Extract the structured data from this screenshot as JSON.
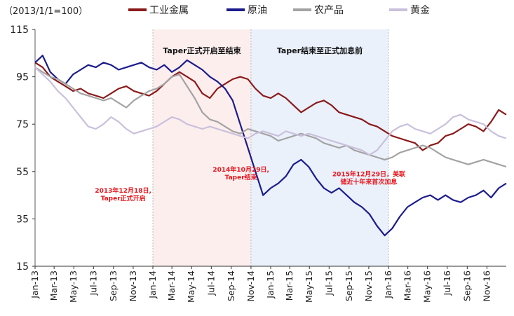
{
  "chart_data": {
    "type": "line",
    "unit_note": "（2013/1/1=100）",
    "y_ticks": [
      15,
      35,
      55,
      75,
      95,
      115
    ],
    "ylim": [
      15,
      115
    ],
    "x_tick_labels": [
      "Jan-13",
      "Mar-13",
      "May-13",
      "Jul-13",
      "Sep-13",
      "Nov-13",
      "Jan-14",
      "Mar-14",
      "May-14",
      "Jul-14",
      "Sep-14",
      "Nov-14",
      "Jan-15",
      "Mar-15",
      "May-15",
      "Jul-15",
      "Sep-15",
      "Nov-15",
      "Jan-16",
      "Mar-16",
      "May-16",
      "Jul-16",
      "Sep-16",
      "Nov-16"
    ],
    "shaded_periods": [
      {
        "label": "Taper正式开启至结束",
        "from": "2014-01-01",
        "to": "2014-11-01",
        "color": "#fdeeee"
      },
      {
        "label": "Taper结束至正式加息前",
        "from": "2014-11-01",
        "to": "2016-01-01",
        "color": "#eaf1fb"
      }
    ],
    "annotations": [
      {
        "lines": [
          "2013年12月18日,",
          "Taper正式开启"
        ],
        "at": "2013-10-01",
        "y": 46
      },
      {
        "lines": [
          "2014年10月29日,",
          "Taper结束"
        ],
        "at": "2014-10-01",
        "y": 55
      },
      {
        "lines": [
          "2015年12月29日，美联",
          "储近十年来首次加息"
        ],
        "at": "2015-11-01",
        "y": 53
      }
    ],
    "series": [
      {
        "name": "工业金属",
        "color": "#8b1a1a",
        "values": [
          101,
          99,
          95,
          93,
          91,
          89,
          90,
          88,
          87,
          86,
          88,
          90,
          91,
          89,
          88,
          87,
          89,
          92,
          95,
          97,
          95,
          93,
          88,
          86,
          90,
          92,
          94,
          95,
          94,
          90,
          87,
          86,
          88,
          86,
          83,
          80,
          82,
          84,
          85,
          83,
          80,
          79,
          78,
          77,
          75,
          74,
          72,
          70,
          69,
          68,
          67,
          64,
          66,
          67,
          70,
          71,
          73,
          75,
          74,
          72,
          76,
          81,
          79
        ]
      },
      {
        "name": "原油",
        "color": "#1c1c8c",
        "values": [
          101,
          104,
          97,
          94,
          92,
          96,
          98,
          100,
          99,
          101,
          100,
          98,
          99,
          100,
          101,
          99,
          98,
          100,
          97,
          99,
          102,
          100,
          98,
          95,
          93,
          90,
          85,
          75,
          65,
          55,
          45,
          48,
          50,
          53,
          58,
          60,
          57,
          52,
          48,
          46,
          48,
          45,
          42,
          40,
          37,
          32,
          28,
          31,
          36,
          40,
          42,
          44,
          45,
          43,
          45,
          43,
          42,
          44,
          45,
          47,
          44,
          48,
          50
        ]
      },
      {
        "name": "农产品",
        "color": "#a3a3a3",
        "values": [
          99,
          97,
          95,
          94,
          92,
          90,
          88,
          87,
          86,
          85,
          86,
          84,
          82,
          85,
          87,
          89,
          90,
          92,
          95,
          96,
          91,
          86,
          80,
          77,
          76,
          74,
          72,
          71,
          73,
          72,
          71,
          70,
          68,
          69,
          70,
          71,
          70,
          69,
          67,
          66,
          65,
          66,
          64,
          63,
          62,
          61,
          60,
          61,
          63,
          64,
          65,
          66,
          65,
          63,
          61,
          60,
          59,
          58,
          59,
          60,
          59,
          58,
          57
        ]
      },
      {
        "name": "黄金",
        "color": "#c9c0dc",
        "values": [
          99,
          96,
          93,
          89,
          86,
          82,
          78,
          74,
          73,
          75,
          78,
          76,
          73,
          71,
          72,
          73,
          74,
          76,
          78,
          77,
          75,
          74,
          73,
          74,
          73,
          72,
          71,
          70,
          69,
          71,
          72,
          71,
          70,
          72,
          71,
          70,
          71,
          70,
          69,
          68,
          67,
          66,
          65,
          64,
          62,
          64,
          68,
          72,
          74,
          75,
          73,
          72,
          71,
          73,
          75,
          78,
          79,
          77,
          76,
          75,
          72,
          70,
          69
        ]
      }
    ]
  }
}
